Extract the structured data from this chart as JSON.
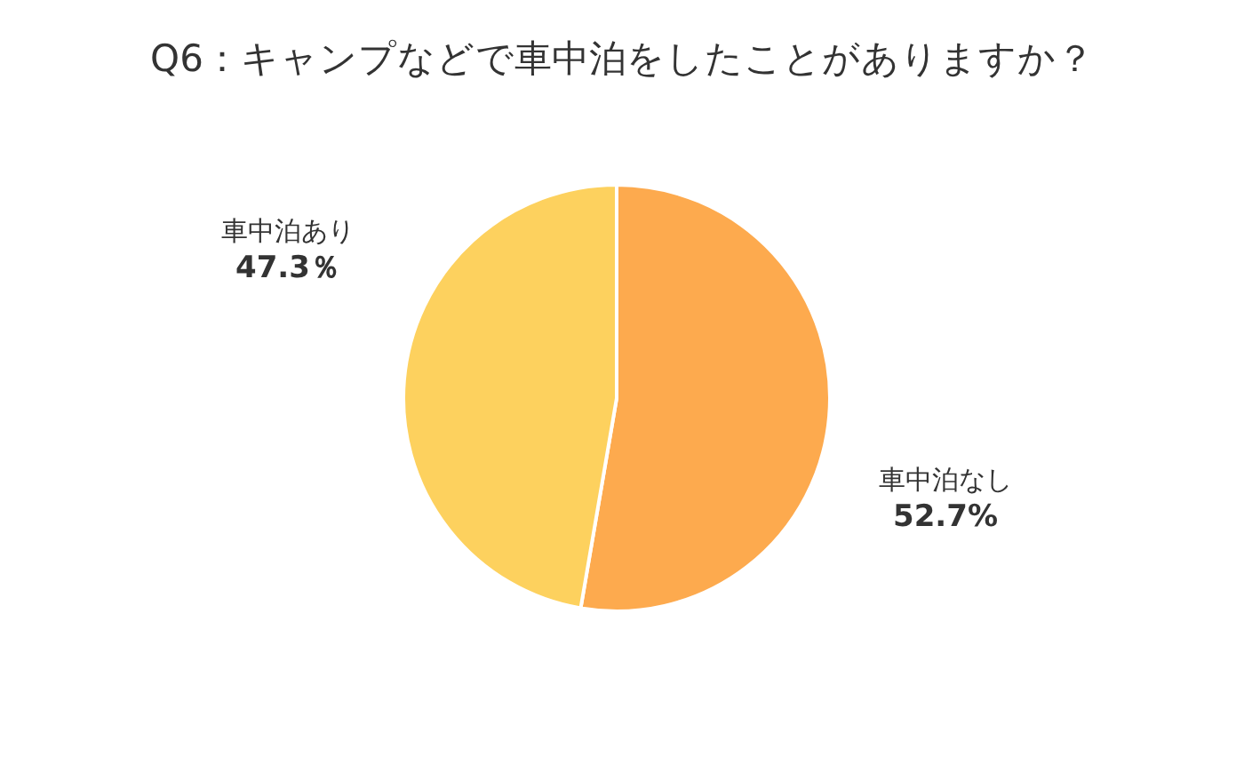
{
  "chart_data": {
    "type": "pie",
    "title": "Q6：キャンプなどで車中泊をしたことがありますか？",
    "categories": [
      "車中泊なし",
      "車中泊あり"
    ],
    "values": [
      52.7,
      47.3
    ],
    "colors": [
      "#fdaa4e",
      "#fdd15e"
    ],
    "value_labels": [
      "52.7%",
      "47.3％"
    ]
  }
}
